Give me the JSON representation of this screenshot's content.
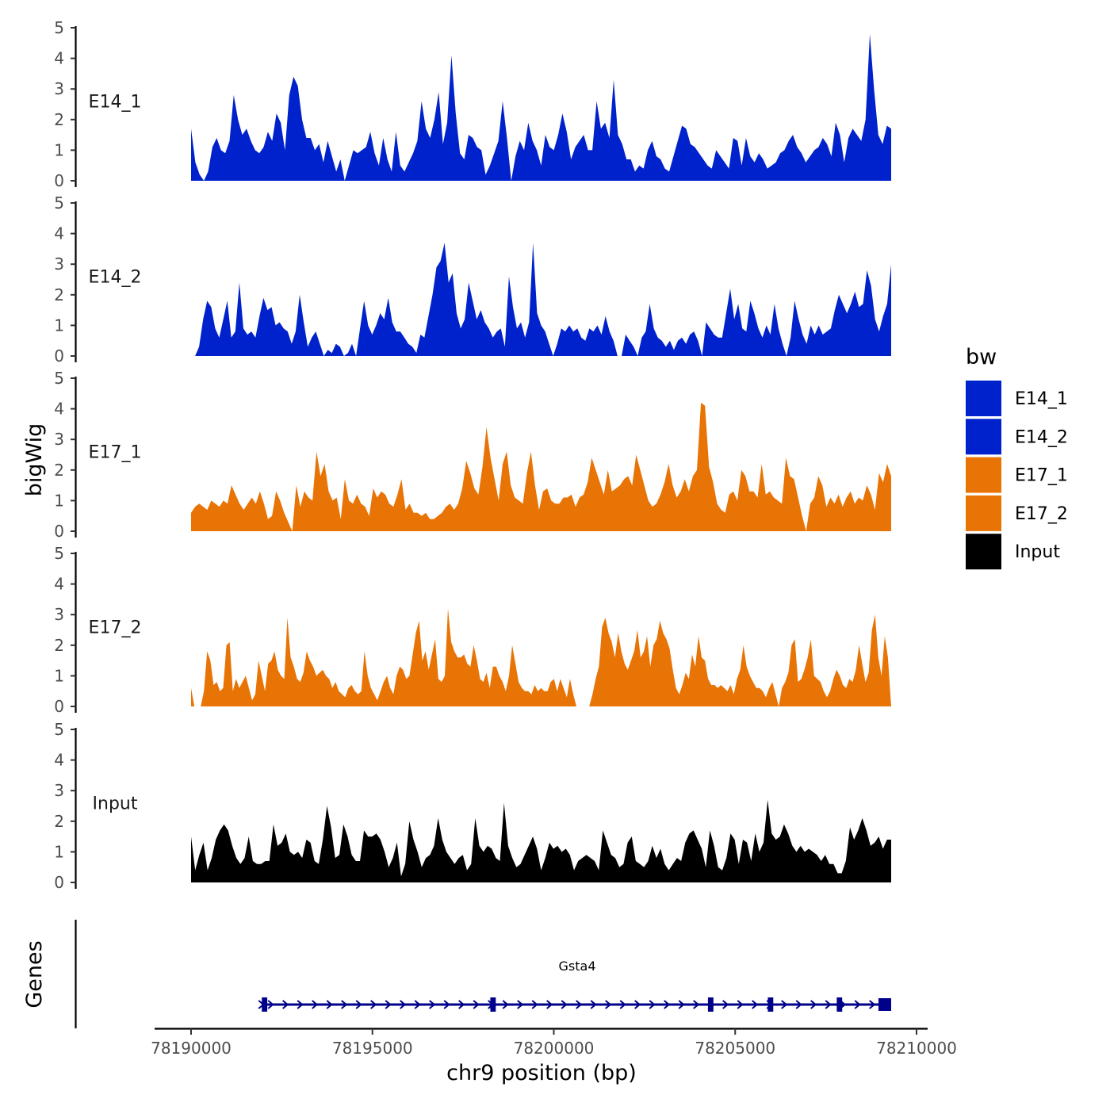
{
  "chart_data": {
    "type": "area",
    "title": "",
    "ylabel": "bigWig",
    "xlabel": "chr9 position (bp)",
    "gene_panel_label": "Genes",
    "ylim": [
      0,
      5
    ],
    "yticks": [
      "0",
      "1",
      "2",
      "3",
      "4",
      "5"
    ],
    "xlim": [
      78190000,
      78210000
    ],
    "xticks": [
      78190000,
      78195000,
      78200000,
      78205000,
      78210000
    ],
    "xtick_labels": [
      "78190000",
      "78195000",
      "78200000",
      "78205000",
      "78210000"
    ],
    "x_start": 78190000,
    "x_end": 78209300,
    "series": [
      {
        "name": "E14_1",
        "color": "#0022CC",
        "values": [
          1.7,
          0.6,
          0.2,
          0.0,
          0.3,
          1.1,
          1.4,
          1.0,
          0.9,
          1.3,
          2.8,
          2.0,
          1.5,
          1.7,
          1.3,
          1.0,
          0.9,
          1.1,
          1.6,
          1.3,
          2.2,
          1.9,
          1.0,
          2.8,
          3.4,
          3.1,
          2.0,
          1.4,
          1.4,
          1.0,
          1.2,
          0.6,
          1.3,
          0.8,
          0.3,
          0.7,
          0.0,
          0.5,
          1.0,
          0.9,
          1.0,
          1.1,
          1.6,
          0.9,
          0.5,
          1.4,
          0.7,
          0.3,
          1.6,
          0.5,
          0.3,
          0.6,
          0.9,
          1.3,
          2.6,
          1.7,
          1.4,
          2.0,
          2.9,
          1.2,
          1.9,
          4.1,
          2.2,
          0.9,
          0.7,
          1.5,
          1.4,
          1.1,
          1.0,
          0.2,
          0.5,
          0.9,
          1.3,
          2.6,
          1.4,
          0.0,
          0.8,
          1.3,
          1.0,
          1.9,
          1.3,
          1.0,
          0.5,
          1.5,
          1.1,
          1.0,
          1.5,
          2.2,
          1.6,
          0.7,
          1.1,
          1.3,
          1.5,
          1.0,
          1.0,
          2.6,
          1.7,
          1.9,
          1.4,
          3.3,
          1.5,
          1.2,
          0.7,
          0.7,
          0.3,
          0.5,
          0.4,
          1.0,
          1.3,
          0.8,
          0.7,
          0.4,
          0.3,
          0.8,
          1.3,
          1.8,
          1.7,
          1.2,
          1.1,
          0.9,
          0.7,
          0.5,
          0.4,
          1.0,
          0.8,
          0.6,
          0.4,
          1.4,
          1.3,
          0.5,
          1.4,
          0.8,
          0.6,
          0.9,
          0.7,
          0.4,
          0.5,
          0.6,
          0.9,
          1.0,
          1.3,
          1.5,
          1.1,
          0.9,
          0.6,
          0.8,
          1.0,
          1.1,
          1.4,
          1.2,
          0.8,
          1.9,
          1.5,
          0.6,
          1.4,
          1.7,
          1.5,
          1.3,
          2.0,
          4.8,
          3.0,
          1.5,
          1.2,
          1.8,
          1.7
        ]
      },
      {
        "name": "E14_2",
        "color": "#0022CC",
        "values": [
          0.0,
          0.0,
          0.3,
          1.2,
          1.8,
          1.6,
          0.9,
          0.6,
          1.2,
          1.8,
          0.6,
          0.8,
          2.4,
          0.9,
          0.7,
          0.8,
          0.6,
          1.3,
          1.9,
          1.5,
          1.6,
          1.0,
          1.1,
          0.9,
          0.8,
          0.4,
          0.8,
          2.0,
          1.1,
          0.3,
          0.6,
          0.8,
          0.4,
          0.0,
          0.2,
          0.1,
          0.4,
          0.3,
          0.0,
          0.1,
          0.4,
          0.0,
          0.9,
          1.8,
          1.0,
          0.7,
          1.0,
          1.4,
          1.2,
          1.9,
          1.1,
          0.8,
          0.8,
          0.6,
          0.4,
          0.3,
          0.1,
          0.7,
          0.6,
          1.3,
          2.0,
          2.9,
          3.1,
          3.7,
          2.4,
          2.7,
          1.4,
          0.9,
          1.2,
          2.4,
          1.8,
          1.2,
          1.5,
          1.1,
          0.9,
          0.6,
          0.8,
          0.9,
          0.3,
          2.6,
          1.6,
          0.9,
          1.1,
          0.6,
          1.1,
          3.7,
          1.4,
          1.0,
          0.8,
          0.4,
          0.0,
          0.4,
          0.9,
          0.8,
          1.0,
          0.8,
          0.9,
          0.6,
          0.5,
          0.9,
          0.8,
          1.0,
          0.7,
          1.3,
          0.8,
          0.5,
          0.0,
          0.0,
          0.7,
          0.5,
          0.3,
          0.0,
          0.6,
          0.8,
          1.7,
          0.9,
          0.6,
          0.5,
          0.3,
          0.5,
          0.2,
          0.5,
          0.6,
          0.4,
          0.7,
          0.8,
          0.5,
          0.0,
          1.1,
          0.9,
          0.7,
          0.6,
          0.6,
          1.4,
          2.2,
          1.2,
          1.7,
          0.9,
          0.8,
          1.8,
          1.4,
          0.9,
          0.6,
          1.0,
          0.7,
          1.7,
          0.9,
          0.4,
          0.0,
          0.6,
          1.8,
          1.2,
          0.7,
          0.4,
          1.0,
          0.7,
          1.0,
          0.7,
          0.8,
          0.9,
          1.5,
          2.0,
          1.7,
          1.4,
          1.7,
          2.1,
          1.6,
          1.7,
          2.8,
          2.3,
          1.2,
          0.8,
          1.3,
          1.7,
          3.0
        ]
      },
      {
        "name": "E17_1",
        "color": "#E87405",
        "values": [
          0.6,
          0.8,
          0.9,
          0.8,
          0.7,
          1.0,
          0.9,
          0.8,
          1.0,
          0.9,
          1.5,
          1.2,
          0.9,
          0.7,
          0.9,
          1.1,
          0.9,
          1.3,
          0.9,
          0.4,
          0.5,
          1.3,
          1.0,
          0.6,
          0.3,
          0.0,
          1.5,
          0.8,
          1.3,
          1.1,
          1.0,
          2.6,
          1.8,
          2.2,
          1.3,
          1.0,
          1.1,
          0.4,
          1.7,
          1.0,
          0.9,
          1.2,
          0.9,
          0.8,
          0.5,
          1.4,
          1.1,
          1.3,
          1.2,
          0.9,
          0.8,
          1.2,
          1.7,
          0.7,
          0.9,
          0.6,
          0.6,
          0.5,
          0.6,
          0.4,
          0.4,
          0.5,
          0.6,
          0.8,
          0.9,
          0.7,
          0.9,
          1.4,
          2.3,
          1.9,
          1.4,
          1.2,
          2.1,
          3.4,
          2.4,
          1.7,
          1.0,
          2.2,
          2.6,
          1.5,
          1.1,
          1.0,
          0.9,
          1.9,
          2.6,
          1.5,
          0.7,
          1.3,
          1.4,
          1.0,
          0.9,
          0.9,
          1.1,
          1.1,
          1.2,
          0.8,
          1.1,
          1.2,
          1.6,
          2.4,
          2.0,
          1.6,
          1.2,
          2.0,
          1.3,
          1.4,
          1.5,
          1.7,
          1.8,
          1.5,
          2.5,
          2.0,
          1.5,
          1.0,
          0.8,
          0.9,
          1.2,
          1.6,
          2.2,
          1.5,
          1.1,
          1.3,
          1.7,
          1.3,
          1.8,
          2.0,
          4.2,
          4.1,
          2.1,
          1.6,
          0.9,
          0.7,
          0.6,
          1.2,
          1.3,
          1.0,
          2.0,
          1.8,
          1.3,
          1.3,
          1.1,
          2.2,
          1.2,
          1.3,
          1.1,
          1.0,
          0.9,
          2.4,
          1.8,
          1.7,
          1.1,
          0.5,
          0.0,
          0.9,
          1.1,
          1.8,
          1.5,
          0.8,
          1.1,
          0.9,
          1.2,
          0.8,
          1.1,
          1.3,
          0.9,
          1.1,
          1.0,
          1.5,
          1.2,
          0.7,
          1.9,
          1.6,
          2.2,
          1.8
        ]
      },
      {
        "name": "E17_2",
        "color": "#E87405",
        "values": [
          0.6,
          0.0,
          0.0,
          0.0,
          0.5,
          1.8,
          1.5,
          0.7,
          0.8,
          0.5,
          0.6,
          2.0,
          2.1,
          0.5,
          0.9,
          0.6,
          0.8,
          1.0,
          0.6,
          0.2,
          0.4,
          1.5,
          1.0,
          0.5,
          1.4,
          1.5,
          1.8,
          1.2,
          1.0,
          0.9,
          2.9,
          1.6,
          1.3,
          0.9,
          0.8,
          1.1,
          1.8,
          1.5,
          1.3,
          1.0,
          1.1,
          1.2,
          1.0,
          0.9,
          0.6,
          0.8,
          0.5,
          0.4,
          0.3,
          0.6,
          0.7,
          0.5,
          0.4,
          0.5,
          1.8,
          1.0,
          0.6,
          0.4,
          0.2,
          0.5,
          0.8,
          1.0,
          0.6,
          0.4,
          1.0,
          1.3,
          1.2,
          0.9,
          1.0,
          1.7,
          2.4,
          2.8,
          1.5,
          1.8,
          1.2,
          1.7,
          2.2,
          0.9,
          0.8,
          1.0,
          3.2,
          2.1,
          1.8,
          1.6,
          1.6,
          1.7,
          1.4,
          1.3,
          2.0,
          1.5,
          0.9,
          0.8,
          1.1,
          0.6,
          1.3,
          1.3,
          1.0,
          0.8,
          0.5,
          1.0,
          2.0,
          1.4,
          0.8,
          0.6,
          0.5,
          0.5,
          0.4,
          0.7,
          0.5,
          0.6,
          0.5,
          0.5,
          0.8,
          0.9,
          0.5,
          0.9,
          0.6,
          0.3,
          0.9,
          0.4,
          0.0,
          0.0,
          0.0,
          0.0,
          0.0,
          0.4,
          0.9,
          1.3,
          2.6,
          2.9,
          2.4,
          2.1,
          1.6,
          2.4,
          1.8,
          1.4,
          1.2,
          1.5,
          1.8,
          2.5,
          1.6,
          1.8,
          2.3,
          1.3,
          2.0,
          2.2,
          2.8,
          2.4,
          2.2,
          1.9,
          1.2,
          0.6,
          0.4,
          0.7,
          1.1,
          0.9,
          1.7,
          1.3,
          2.3,
          1.6,
          1.5,
          0.9,
          0.7,
          0.7,
          0.6,
          0.7,
          0.6,
          0.5,
          0.7,
          0.4,
          0.9,
          1.2,
          2.0,
          1.3,
          1.0,
          0.8,
          0.6,
          0.6,
          0.5,
          0.3,
          0.6,
          0.8,
          0.4,
          0.0,
          0.6,
          0.8,
          1.1,
          2.0,
          2.2,
          0.8,
          0.9,
          1.2,
          1.6,
          2.2,
          1.0,
          0.9,
          0.8,
          0.5,
          0.3,
          0.5,
          0.9,
          1.2,
          1.0,
          0.7,
          0.6,
          0.9,
          0.8,
          1.2,
          2.0,
          1.4,
          0.8,
          1.1,
          2.5,
          3.0,
          1.6,
          1.0,
          2.3,
          1.6,
          0.0
        ]
      },
      {
        "name": "Input",
        "color": "#000000",
        "values": [
          1.5,
          0.4,
          0.9,
          1.3,
          0.4,
          0.8,
          1.4,
          1.7,
          1.9,
          1.7,
          1.2,
          0.8,
          0.6,
          0.8,
          1.5,
          0.7,
          0.6,
          0.6,
          0.7,
          0.7,
          1.9,
          1.2,
          1.3,
          1.6,
          1.0,
          0.9,
          1.0,
          0.8,
          1.4,
          1.3,
          0.7,
          0.6,
          1.4,
          2.5,
          1.8,
          0.8,
          0.9,
          1.9,
          1.5,
          0.9,
          0.7,
          0.7,
          1.7,
          1.5,
          1.5,
          1.6,
          1.4,
          1.0,
          0.5,
          0.8,
          1.3,
          0.2,
          0.6,
          2.0,
          1.4,
          1.0,
          0.5,
          0.8,
          0.9,
          1.2,
          2.1,
          1.4,
          1.0,
          0.8,
          0.6,
          0.8,
          0.9,
          0.4,
          0.6,
          2.1,
          1.2,
          1.0,
          1.2,
          1.1,
          0.8,
          0.7,
          2.6,
          1.2,
          0.8,
          0.5,
          0.6,
          0.9,
          1.2,
          1.5,
          1.1,
          0.4,
          0.8,
          1.3,
          1.1,
          1.2,
          1.0,
          1.1,
          0.9,
          0.4,
          0.7,
          0.8,
          0.9,
          0.8,
          0.7,
          0.4,
          1.7,
          1.3,
          0.9,
          0.8,
          0.5,
          0.6,
          1.3,
          1.5,
          0.7,
          0.6,
          0.5,
          0.7,
          1.2,
          0.8,
          1.1,
          0.6,
          0.4,
          0.6,
          0.8,
          0.7,
          1.3,
          1.6,
          1.7,
          1.4,
          1.1,
          0.5,
          1.7,
          1.2,
          0.5,
          0.4,
          0.8,
          1.6,
          1.4,
          0.6,
          1.4,
          1.3,
          0.7,
          1.6,
          1.0,
          1.3,
          2.7,
          1.6,
          1.4,
          1.5,
          1.9,
          1.6,
          1.2,
          1.0,
          1.2,
          1.0,
          1.1,
          1.0,
          0.9,
          0.7,
          0.9,
          0.6,
          0.6,
          0.3,
          0.3,
          0.7,
          1.8,
          1.4,
          1.7,
          2.1,
          1.7,
          1.2,
          1.3,
          1.5,
          1.1,
          1.4,
          1.4
        ]
      }
    ],
    "legend": {
      "title": "bw",
      "position": "right",
      "entries": [
        {
          "label": "E14_1",
          "color": "#0022CC"
        },
        {
          "label": "E14_2",
          "color": "#0022CC"
        },
        {
          "label": "E17_1",
          "color": "#E87405"
        },
        {
          "label": "E17_2",
          "color": "#E87405"
        },
        {
          "label": "Input",
          "color": "#000000"
        }
      ]
    },
    "gene": {
      "name": "Gsta4",
      "color": "#00008B",
      "strand": "+",
      "start": 78191950,
      "end": 78209300,
      "exons": [
        [
          78191950,
          78192100
        ],
        [
          78198250,
          78198400
        ],
        [
          78204250,
          78204400
        ],
        [
          78205900,
          78206050
        ],
        [
          78207800,
          78207950
        ],
        [
          78208950,
          78209300
        ]
      ]
    }
  }
}
